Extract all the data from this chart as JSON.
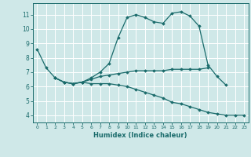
{
  "title": "",
  "xlabel": "Humidex (Indice chaleur)",
  "ylabel": "",
  "background_color": "#cfe8e8",
  "grid_color": "#ffffff",
  "line_color": "#1a6b6b",
  "marker": "D",
  "markersize": 1.8,
  "linewidth": 0.9,
  "xlim": [
    -0.5,
    23.5
  ],
  "ylim": [
    3.5,
    11.8
  ],
  "xticks": [
    0,
    1,
    2,
    3,
    4,
    5,
    6,
    7,
    8,
    9,
    10,
    11,
    12,
    13,
    14,
    15,
    16,
    17,
    18,
    19,
    20,
    21,
    22,
    23
  ],
  "yticks": [
    4,
    5,
    6,
    7,
    8,
    9,
    10,
    11
  ],
  "series": [
    {
      "x": [
        0,
        1,
        2,
        3,
        4,
        5,
        6,
        7,
        8,
        9,
        10,
        11,
        12,
        13,
        14,
        15,
        16,
        17,
        18,
        19,
        20,
        21
      ],
      "y": [
        8.6,
        7.3,
        6.6,
        6.3,
        6.2,
        6.3,
        6.6,
        7.0,
        7.6,
        9.4,
        10.8,
        11.0,
        10.8,
        10.5,
        10.4,
        11.1,
        11.2,
        10.9,
        10.2,
        7.5,
        6.7,
        6.1
      ]
    },
    {
      "x": [
        2,
        3,
        4,
        5,
        6,
        7,
        8,
        9,
        10,
        11,
        12,
        13,
        14,
        15,
        16,
        17,
        18,
        19
      ],
      "y": [
        6.6,
        6.3,
        6.2,
        6.3,
        6.5,
        6.7,
        6.8,
        6.9,
        7.0,
        7.1,
        7.1,
        7.1,
        7.1,
        7.2,
        7.2,
        7.2,
        7.2,
        7.3
      ]
    },
    {
      "x": [
        2,
        3,
        4,
        5,
        6,
        7,
        8,
        9,
        10,
        11,
        12,
        13,
        14,
        15,
        16,
        17,
        18,
        19,
        20,
        21,
        22,
        23
      ],
      "y": [
        6.6,
        6.3,
        6.2,
        6.3,
        6.2,
        6.2,
        6.2,
        6.1,
        6.0,
        5.8,
        5.6,
        5.4,
        5.2,
        4.9,
        4.8,
        4.6,
        4.4,
        4.2,
        4.1,
        4.0,
        4.0,
        4.0
      ]
    }
  ]
}
